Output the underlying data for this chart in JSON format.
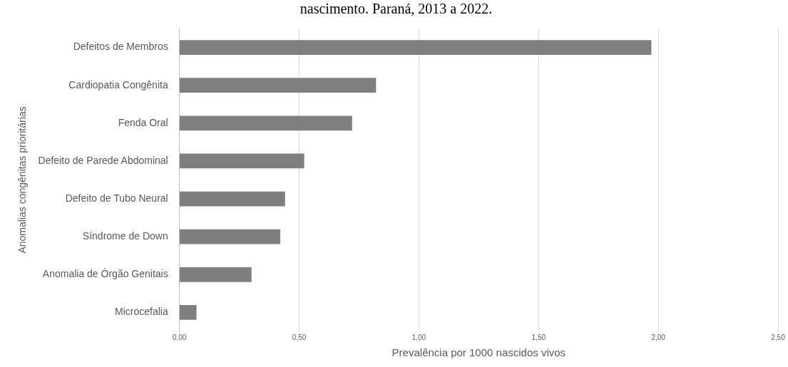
{
  "chart_data": {
    "type": "bar",
    "orientation": "horizontal",
    "title": "nascimento. Paraná, 2013 a 2022.",
    "xlabel": "Prevalência por 1000 nascidos vivos",
    "ylabel": "Anomalias congênitas prioritárias",
    "categories": [
      "Defeitos de Membros",
      "Cardiopatia Congênita",
      "Fenda Oral",
      "Defeito de Parede Abdominal",
      "Defeito de Tubo Neural",
      "Síndrome de Down",
      "Anomalia de Órgão Genitais",
      "Microcefalia"
    ],
    "values": [
      1.97,
      0.82,
      0.72,
      0.52,
      0.44,
      0.42,
      0.3,
      0.07
    ],
    "color": "#7f7f7f",
    "xlim": [
      0,
      2.5
    ],
    "xticks": [
      {
        "value": 0,
        "label": "0,00"
      },
      {
        "value": 0.5,
        "label": "0,50"
      },
      {
        "value": 1,
        "label": "1,00"
      },
      {
        "value": 1.5,
        "label": "1,50"
      },
      {
        "value": 2,
        "label": "2,00"
      },
      {
        "value": 2.5,
        "label": "2,50"
      }
    ],
    "grid": "x"
  }
}
